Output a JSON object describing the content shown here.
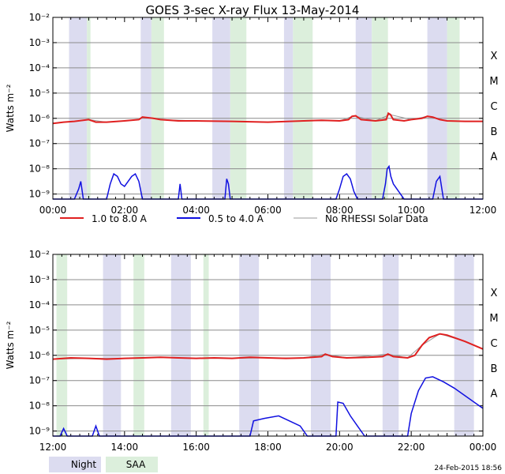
{
  "title": "GOES 3-sec X-ray Flux   13-May-2014",
  "legend": [
    {
      "label": "1.0 to 8.0 A",
      "color": "#e02020"
    },
    {
      "label": "0.5 to 4.0 A",
      "color": "#1010e0"
    },
    {
      "label": "No RHESSI Solar Data",
      "color": "#999999"
    }
  ],
  "shading_legend": {
    "night": {
      "label": "Night",
      "color": "#dcdcf0"
    },
    "saa": {
      "label": "SAA",
      "color": "#dcefdc"
    }
  },
  "timestamp": "24-Feb-2015 18:56",
  "chart_data": [
    {
      "type": "line",
      "panel": "top",
      "ylabel": "Watts m⁻²",
      "y_scale": "log",
      "ylim": [
        -9.2,
        -2
      ],
      "y_ticks": [
        {
          "exp": -2,
          "label": "10⁻²"
        },
        {
          "exp": -3,
          "label": "10⁻³"
        },
        {
          "exp": -4,
          "label": "10⁻⁴"
        },
        {
          "exp": -5,
          "label": "10⁻⁵"
        },
        {
          "exp": -6,
          "label": "10⁻⁶"
        },
        {
          "exp": -7,
          "label": "10⁻⁷"
        },
        {
          "exp": -8,
          "label": "10⁻⁸"
        },
        {
          "exp": -9,
          "label": "10⁻⁹"
        }
      ],
      "flare_classes": [
        {
          "label": "X",
          "exp": -3.5
        },
        {
          "label": "M",
          "exp": -4.5
        },
        {
          "label": "C",
          "exp": -5.5
        },
        {
          "label": "B",
          "exp": -6.5
        },
        {
          "label": "A",
          "exp": -7.5
        }
      ],
      "xlim_hours": [
        0,
        12
      ],
      "x_ticks": [
        {
          "h": 0,
          "label": "00:00"
        },
        {
          "h": 2,
          "label": "02:00"
        },
        {
          "h": 4,
          "label": "04:00"
        },
        {
          "h": 6,
          "label": "06:00"
        },
        {
          "h": 8,
          "label": "08:00"
        },
        {
          "h": 10,
          "label": "10:00"
        },
        {
          "h": 12,
          "label": "12:00"
        }
      ],
      "night": [
        [
          0.45,
          0.95
        ],
        [
          2.45,
          2.75
        ],
        [
          4.45,
          4.95
        ],
        [
          6.45,
          6.7
        ],
        [
          8.45,
          8.9
        ],
        [
          10.45,
          11.0
        ]
      ],
      "saa": [
        [
          0.95,
          1.05
        ],
        [
          2.75,
          3.1
        ],
        [
          4.95,
          5.4
        ],
        [
          6.7,
          7.25
        ],
        [
          8.9,
          9.35
        ],
        [
          11.0,
          11.35
        ]
      ],
      "long_series": [
        [
          0.0,
          -6.2
        ],
        [
          0.3,
          -6.15
        ],
        [
          0.6,
          -6.12
        ],
        [
          1.0,
          -6.05
        ],
        [
          1.2,
          -6.15
        ],
        [
          1.5,
          -6.15
        ],
        [
          2.0,
          -6.1
        ],
        [
          2.4,
          -6.05
        ],
        [
          2.5,
          -5.95
        ],
        [
          2.8,
          -6.0
        ],
        [
          3.0,
          -6.05
        ],
        [
          3.5,
          -6.1
        ],
        [
          4.0,
          -6.1
        ],
        [
          5.0,
          -6.12
        ],
        [
          6.0,
          -6.15
        ],
        [
          6.6,
          -6.12
        ],
        [
          7.0,
          -6.1
        ],
        [
          7.5,
          -6.08
        ],
        [
          8.0,
          -6.1
        ],
        [
          8.25,
          -6.05
        ],
        [
          8.35,
          -5.92
        ],
        [
          8.45,
          -5.9
        ],
        [
          8.6,
          -6.05
        ],
        [
          9.0,
          -6.1
        ],
        [
          9.3,
          -6.05
        ],
        [
          9.36,
          -5.8
        ],
        [
          9.42,
          -5.85
        ],
        [
          9.5,
          -6.05
        ],
        [
          9.8,
          -6.1
        ],
        [
          10.0,
          -6.05
        ],
        [
          10.3,
          -6.0
        ],
        [
          10.45,
          -5.92
        ],
        [
          10.6,
          -5.95
        ],
        [
          10.8,
          -6.05
        ],
        [
          11.0,
          -6.1
        ],
        [
          11.5,
          -6.12
        ],
        [
          12.0,
          -6.12
        ]
      ],
      "short_series": [
        [
          0.0,
          -9.2
        ],
        [
          0.6,
          -9.2
        ],
        [
          0.72,
          -8.8
        ],
        [
          0.78,
          -8.5
        ],
        [
          0.85,
          -9.2
        ],
        [
          1.5,
          -9.2
        ],
        [
          1.6,
          -8.6
        ],
        [
          1.7,
          -8.2
        ],
        [
          1.8,
          -8.3
        ],
        [
          1.9,
          -8.6
        ],
        [
          2.0,
          -8.7
        ],
        [
          2.1,
          -8.5
        ],
        [
          2.2,
          -8.3
        ],
        [
          2.3,
          -8.2
        ],
        [
          2.4,
          -8.5
        ],
        [
          2.5,
          -9.2
        ],
        [
          3.5,
          -9.2
        ],
        [
          3.55,
          -8.6
        ],
        [
          3.6,
          -9.2
        ],
        [
          4.0,
          -9.2
        ],
        [
          4.8,
          -9.2
        ],
        [
          4.85,
          -8.4
        ],
        [
          4.9,
          -8.6
        ],
        [
          4.95,
          -9.2
        ],
        [
          7.9,
          -9.2
        ],
        [
          8.0,
          -8.8
        ],
        [
          8.1,
          -8.3
        ],
        [
          8.2,
          -8.2
        ],
        [
          8.3,
          -8.4
        ],
        [
          8.4,
          -8.9
        ],
        [
          8.5,
          -9.2
        ],
        [
          9.2,
          -9.2
        ],
        [
          9.28,
          -8.6
        ],
        [
          9.33,
          -8.0
        ],
        [
          9.38,
          -7.9
        ],
        [
          9.43,
          -8.3
        ],
        [
          9.5,
          -8.6
        ],
        [
          9.6,
          -8.8
        ],
        [
          9.7,
          -9.0
        ],
        [
          9.8,
          -9.2
        ],
        [
          10.6,
          -9.2
        ],
        [
          10.7,
          -8.5
        ],
        [
          10.8,
          -8.3
        ],
        [
          10.9,
          -9.2
        ],
        [
          12.0,
          -9.2
        ]
      ],
      "unavailable_series": [
        [
          0.0,
          -6.2
        ],
        [
          0.3,
          -6.15
        ],
        [
          0.6,
          -6.12
        ],
        [
          1.0,
          -6.05
        ],
        [
          1.5,
          -6.15
        ],
        [
          2.0,
          -6.1
        ],
        [
          2.4,
          -6.05
        ],
        [
          2.5,
          -5.95
        ],
        [
          3.0,
          -6.05
        ],
        [
          4.0,
          -6.1
        ],
        [
          5.0,
          -6.12
        ],
        [
          6.0,
          -6.15
        ],
        [
          7.0,
          -6.1
        ],
        [
          8.0,
          -6.1
        ],
        [
          8.4,
          -5.9
        ],
        [
          9.0,
          -6.1
        ],
        [
          9.4,
          -5.85
        ],
        [
          10.0,
          -6.05
        ],
        [
          10.45,
          -5.92
        ],
        [
          11.0,
          -6.1
        ],
        [
          12.0,
          -6.12
        ]
      ]
    },
    {
      "type": "line",
      "panel": "bottom",
      "ylabel": "Watts m⁻²",
      "y_scale": "log",
      "ylim": [
        -9.2,
        -2
      ],
      "y_ticks": [
        {
          "exp": -2,
          "label": "10⁻²"
        },
        {
          "exp": -3,
          "label": "10⁻³"
        },
        {
          "exp": -4,
          "label": "10⁻⁴"
        },
        {
          "exp": -5,
          "label": "10⁻⁵"
        },
        {
          "exp": -6,
          "label": "10⁻⁶"
        },
        {
          "exp": -7,
          "label": "10⁻⁷"
        },
        {
          "exp": -8,
          "label": "10⁻⁸"
        },
        {
          "exp": -9,
          "label": "10⁻⁹"
        }
      ],
      "flare_classes": [
        {
          "label": "X",
          "exp": -3.5
        },
        {
          "label": "M",
          "exp": -4.5
        },
        {
          "label": "C",
          "exp": -5.5
        },
        {
          "label": "B",
          "exp": -6.5
        },
        {
          "label": "A",
          "exp": -7.5
        }
      ],
      "xlim_hours": [
        12,
        24
      ],
      "x_ticks": [
        {
          "h": 12,
          "label": "12:00"
        },
        {
          "h": 14,
          "label": "14:00"
        },
        {
          "h": 16,
          "label": "16:00"
        },
        {
          "h": 18,
          "label": "18:00"
        },
        {
          "h": 20,
          "label": "20:00"
        },
        {
          "h": 22,
          "label": "22:00"
        },
        {
          "h": 24,
          "label": "00:00"
        }
      ],
      "night": [
        [
          13.4,
          13.9
        ],
        [
          15.3,
          15.85
        ],
        [
          17.2,
          17.75
        ],
        [
          19.2,
          19.75
        ],
        [
          21.2,
          21.65
        ],
        [
          23.2,
          23.75
        ]
      ],
      "saa": [
        [
          12.1,
          12.4
        ],
        [
          14.25,
          14.55
        ],
        [
          16.2,
          16.35
        ]
      ],
      "long_series": [
        [
          12.0,
          -6.15
        ],
        [
          12.5,
          -6.1
        ],
        [
          13.0,
          -6.12
        ],
        [
          13.5,
          -6.15
        ],
        [
          14.0,
          -6.12
        ],
        [
          14.5,
          -6.1
        ],
        [
          15.0,
          -6.08
        ],
        [
          15.5,
          -6.1
        ],
        [
          16.0,
          -6.12
        ],
        [
          16.5,
          -6.1
        ],
        [
          17.0,
          -6.12
        ],
        [
          17.5,
          -6.08
        ],
        [
          18.0,
          -6.1
        ],
        [
          18.5,
          -6.12
        ],
        [
          19.0,
          -6.1
        ],
        [
          19.5,
          -6.05
        ],
        [
          19.6,
          -5.95
        ],
        [
          19.8,
          -6.05
        ],
        [
          20.2,
          -6.1
        ],
        [
          20.8,
          -6.08
        ],
        [
          21.2,
          -6.05
        ],
        [
          21.35,
          -5.95
        ],
        [
          21.5,
          -6.05
        ],
        [
          21.9,
          -6.1
        ],
        [
          22.1,
          -6.0
        ],
        [
          22.3,
          -5.6
        ],
        [
          22.5,
          -5.3
        ],
        [
          22.8,
          -5.15
        ],
        [
          23.0,
          -5.2
        ],
        [
          23.5,
          -5.45
        ],
        [
          24.0,
          -5.75
        ]
      ],
      "short_series": [
        [
          12.0,
          -9.2
        ],
        [
          12.2,
          -9.2
        ],
        [
          12.3,
          -8.9
        ],
        [
          12.4,
          -9.2
        ],
        [
          13.1,
          -9.2
        ],
        [
          13.2,
          -8.8
        ],
        [
          13.3,
          -9.2
        ],
        [
          17.5,
          -9.2
        ],
        [
          17.6,
          -8.6
        ],
        [
          17.9,
          -8.5
        ],
        [
          18.3,
          -8.4
        ],
        [
          18.6,
          -8.6
        ],
        [
          18.9,
          -8.8
        ],
        [
          19.1,
          -9.2
        ],
        [
          19.9,
          -9.2
        ],
        [
          19.95,
          -7.85
        ],
        [
          20.1,
          -7.9
        ],
        [
          20.3,
          -8.4
        ],
        [
          20.5,
          -8.8
        ],
        [
          20.7,
          -9.2
        ],
        [
          21.9,
          -9.2
        ],
        [
          22.0,
          -8.3
        ],
        [
          22.2,
          -7.4
        ],
        [
          22.4,
          -6.9
        ],
        [
          22.6,
          -6.85
        ],
        [
          22.9,
          -7.05
        ],
        [
          23.2,
          -7.3
        ],
        [
          23.5,
          -7.6
        ],
        [
          23.8,
          -7.9
        ],
        [
          24.0,
          -8.1
        ]
      ],
      "unavailable_series": [
        [
          12.0,
          -6.15
        ],
        [
          13.0,
          -6.12
        ],
        [
          14.0,
          -6.12
        ],
        [
          15.0,
          -6.08
        ],
        [
          16.0,
          -6.12
        ],
        [
          17.0,
          -6.12
        ],
        [
          18.0,
          -6.1
        ],
        [
          19.0,
          -6.1
        ],
        [
          19.6,
          -5.95
        ],
        [
          20.2,
          -6.1
        ],
        [
          21.35,
          -5.95
        ],
        [
          21.9,
          -6.1
        ],
        [
          22.3,
          -5.6
        ],
        [
          22.8,
          -5.15
        ],
        [
          23.5,
          -5.45
        ],
        [
          24.0,
          -5.75
        ]
      ]
    }
  ]
}
